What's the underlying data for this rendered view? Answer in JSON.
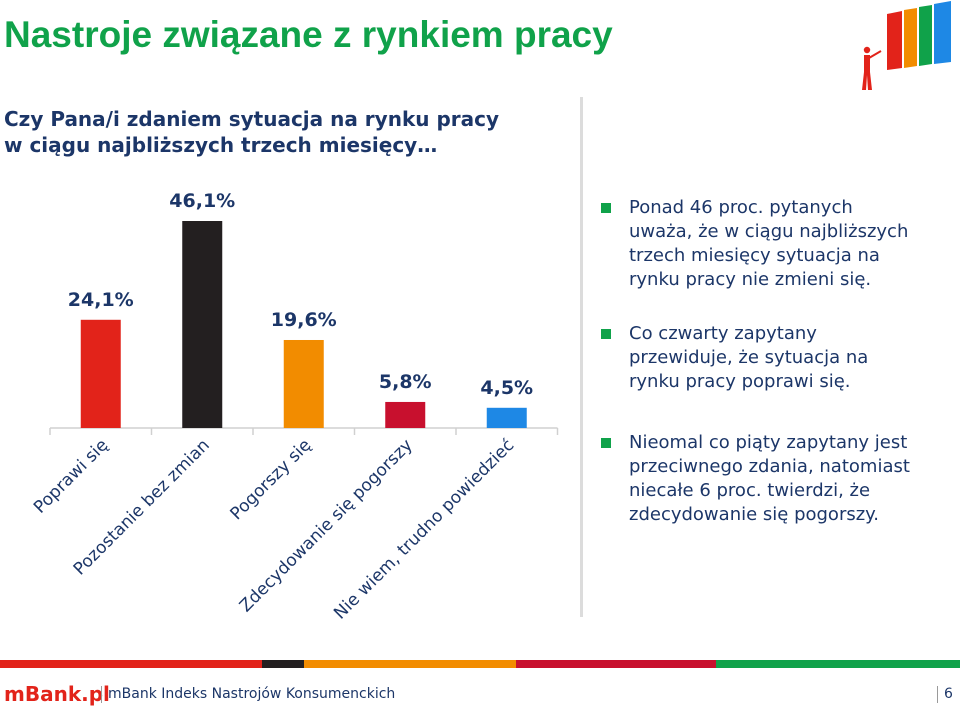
{
  "slide": {
    "title": "Nastroje związane z rynkiem pracy",
    "question_lines": [
      "Czy Pana/i zdaniem sytuacja na rynku pracy",
      "w ciągu najbliższych trzech miesięcy…"
    ]
  },
  "chart_data": {
    "type": "bar",
    "categories": [
      "Poprawi się",
      "Pozostanie bez zmian",
      "Pogorszy się",
      "Zdecydowanie się pogorszy",
      "Nie wiem, trudno powiedzieć"
    ],
    "values": [
      24.1,
      46.1,
      19.6,
      5.8,
      4.5
    ],
    "labels": [
      "24,1%",
      "46,1%",
      "19,6%",
      "5,8%",
      "4,5%"
    ],
    "colors": [
      "#e2231a",
      "#231f20",
      "#f28c00",
      "#c8102e",
      "#1e88e5"
    ],
    "unit": "%",
    "ylim": [
      0,
      46.1
    ]
  },
  "bullets": [
    {
      "lines": [
        "Ponad 46 proc. pytanych",
        "uważa, że w ciągu najbliższych",
        "trzech miesięcy sytuacja na",
        "rynku pracy nie zmieni się."
      ]
    },
    {
      "lines": [
        "Co czwarty zapytany",
        "przewiduje, że sytuacja na",
        "rynku pracy poprawi się."
      ]
    },
    {
      "lines": [
        "Nieomal co piąty zapytany jest",
        "przeciwnego zdania, natomiast",
        "niecałe 6 proc. twierdzi, że",
        "zdecydowanie się pogorszy."
      ]
    }
  ],
  "footer": {
    "brand": "mBank.pl",
    "prefix": "mBank",
    "text": " Indeks Nastrojów Konsumenckich",
    "page": "6"
  },
  "colors": {
    "green": "#10a24a",
    "navy": "#1c3668",
    "red": "#e2231a",
    "orange": "#f28c00",
    "dark": "#231f20",
    "crimson": "#c8102e",
    "blue": "#1e88e5",
    "lightgray": "#dcdcdc"
  }
}
